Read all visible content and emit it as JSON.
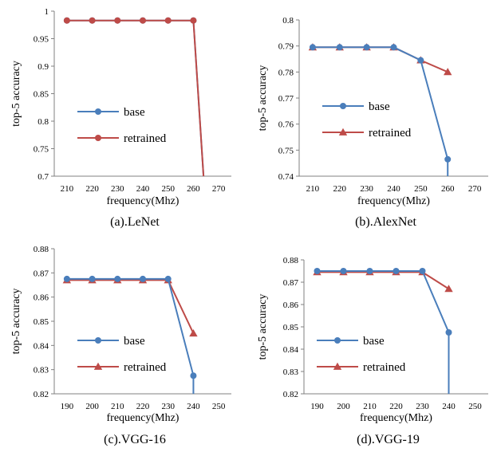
{
  "chart_data": [
    {
      "type": "line",
      "caption": "(a).LeNet",
      "xlabel": "frequency(Mhz)",
      "ylabel": "top-5 accuracy",
      "xlim": [
        205,
        275
      ],
      "ylim": [
        0.7,
        1.0
      ],
      "xticks": [
        210,
        220,
        230,
        240,
        250,
        260,
        270
      ],
      "yticks": [
        0.7,
        0.75,
        0.8,
        0.85,
        0.9,
        0.95,
        1.0
      ],
      "ytick_labels": [
        "0.7",
        "0.75",
        "0.8",
        "0.85",
        "0.9",
        "0.95",
        "1"
      ],
      "grid": false,
      "legend_position": "center-left",
      "series": [
        {
          "name": "base",
          "color": "#4a7ebb",
          "marker": "circle",
          "x": [
            210,
            220,
            230,
            240,
            250,
            260
          ],
          "y": [
            0.983,
            0.983,
            0.983,
            0.983,
            0.983,
            0.983
          ],
          "drop_to": [
            264,
            0.7
          ]
        },
        {
          "name": "retrained",
          "color": "#be4b48",
          "marker": "circle",
          "x": [
            210,
            220,
            230,
            240,
            250,
            260
          ],
          "y": [
            0.983,
            0.983,
            0.983,
            0.983,
            0.983,
            0.983
          ],
          "drop_to": [
            264,
            0.7
          ]
        }
      ]
    },
    {
      "type": "line",
      "caption": "(b).AlexNet",
      "xlabel": "frequency(Mhz)",
      "ylabel": "top-5 accuracy",
      "xlim": [
        205,
        275
      ],
      "ylim": [
        0.74,
        0.8
      ],
      "xticks": [
        210,
        220,
        230,
        240,
        250,
        260,
        270
      ],
      "yticks": [
        0.74,
        0.75,
        0.76,
        0.77,
        0.78,
        0.79,
        0.8
      ],
      "ytick_labels": [
        "0.74",
        "0.75",
        "0.76",
        "0.77",
        "0.78",
        "0.79",
        "0.8"
      ],
      "grid": false,
      "legend_position": "center-left",
      "series": [
        {
          "name": "base",
          "color": "#4a7ebb",
          "marker": "circle",
          "x": [
            210,
            220,
            230,
            240,
            250,
            260
          ],
          "y": [
            0.7895,
            0.7895,
            0.7895,
            0.7895,
            0.7845,
            0.7465
          ],
          "drop_to": [
            260,
            0.74
          ]
        },
        {
          "name": "retrained",
          "color": "#be4b48",
          "marker": "triangle",
          "x": [
            210,
            220,
            230,
            240,
            250,
            260
          ],
          "y": [
            0.7895,
            0.7895,
            0.7895,
            0.7895,
            0.7845,
            0.78
          ]
        }
      ]
    },
    {
      "type": "line",
      "caption": "(c).VGG-16",
      "xlabel": "frequency(Mhz)",
      "ylabel": "top-5 accuracy",
      "xlim": [
        185,
        255
      ],
      "ylim": [
        0.82,
        0.88
      ],
      "xticks": [
        190,
        200,
        210,
        220,
        230,
        240,
        250
      ],
      "yticks": [
        0.82,
        0.83,
        0.84,
        0.85,
        0.86,
        0.87,
        0.88
      ],
      "ytick_labels": [
        "0.82",
        "0.83",
        "0.84",
        "0.85",
        "0.86",
        "0.87",
        "0.88"
      ],
      "grid": false,
      "legend_position": "bottom-left",
      "series": [
        {
          "name": "base",
          "color": "#4a7ebb",
          "marker": "circle",
          "x": [
            190,
            200,
            210,
            220,
            230,
            240
          ],
          "y": [
            0.8675,
            0.8675,
            0.8675,
            0.8675,
            0.8675,
            0.8275
          ],
          "drop_to": [
            240,
            0.82
          ]
        },
        {
          "name": "retrained",
          "color": "#be4b48",
          "marker": "triangle",
          "x": [
            190,
            200,
            210,
            220,
            230,
            240
          ],
          "y": [
            0.867,
            0.867,
            0.867,
            0.867,
            0.867,
            0.845
          ]
        }
      ]
    },
    {
      "type": "line",
      "caption": "(d).VGG-19",
      "xlabel": "frequency(Mhz)",
      "ylabel": "top-5 accuracy",
      "xlim": [
        185,
        255
      ],
      "ylim": [
        0.82,
        0.88
      ],
      "xticks": [
        190,
        200,
        210,
        220,
        230,
        240,
        250
      ],
      "yticks": [
        0.82,
        0.83,
        0.84,
        0.85,
        0.86,
        0.87,
        0.88
      ],
      "ytick_labels": [
        "0.82",
        "0.83",
        "0.84",
        "0.85",
        "0.86",
        "0.87",
        "0.88"
      ],
      "grid": false,
      "legend_position": "center-left",
      "series": [
        {
          "name": "base",
          "color": "#4a7ebb",
          "marker": "circle",
          "x": [
            190,
            200,
            210,
            220,
            230,
            240
          ],
          "y": [
            0.875,
            0.875,
            0.875,
            0.875,
            0.875,
            0.8475
          ],
          "drop_to": [
            240,
            0.82
          ]
        },
        {
          "name": "retrained",
          "color": "#be4b48",
          "marker": "triangle",
          "x": [
            190,
            200,
            210,
            220,
            230,
            240
          ],
          "y": [
            0.8745,
            0.8745,
            0.8745,
            0.8745,
            0.8745,
            0.867
          ]
        }
      ]
    }
  ]
}
